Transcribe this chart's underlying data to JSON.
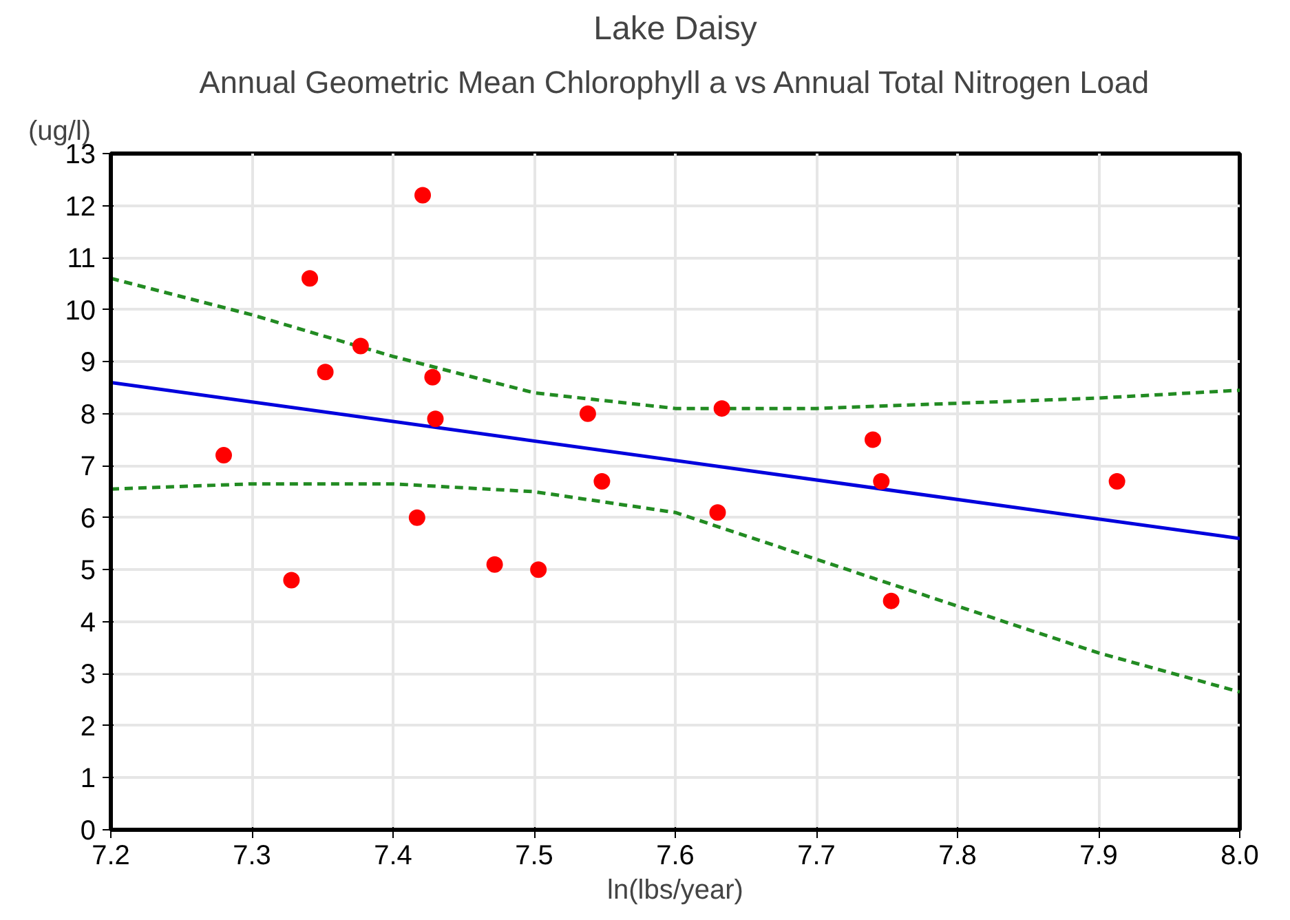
{
  "chart_data": {
    "type": "scatter",
    "title": "Lake Daisy",
    "subtitle": "Annual Geometric Mean Chlorophyll a vs Annual Total Nitrogen Load",
    "xlabel": "ln(lbs/year)",
    "ylabel": "(ug/l)",
    "xlim": [
      7.2,
      8.0
    ],
    "ylim": [
      0,
      13
    ],
    "xticks": [
      7.2,
      7.3,
      7.4,
      7.5,
      7.6,
      7.7,
      7.8,
      7.9,
      {
        "value": 8.0,
        "label": "8.0"
      }
    ],
    "yticks": [
      0,
      1,
      2,
      3,
      4,
      5,
      6,
      7,
      8,
      9,
      10,
      11,
      12,
      13
    ],
    "grid": true,
    "series": [
      {
        "marker": "circle",
        "color": "#ff0000",
        "x": [
          7.28,
          7.328,
          7.341,
          7.352,
          7.377,
          7.417,
          7.421,
          7.428,
          7.43,
          7.472,
          7.503,
          7.538,
          7.548,
          7.633,
          7.63,
          7.74,
          7.746,
          7.753,
          7.913
        ],
        "values": [
          7.2,
          4.8,
          10.6,
          8.8,
          9.3,
          6.0,
          12.2,
          8.7,
          7.9,
          5.1,
          5.0,
          8.0,
          6.7,
          8.1,
          6.1,
          7.5,
          6.7,
          4.4,
          6.7
        ]
      },
      {
        "type": "line",
        "color": "#0000dd",
        "line_style": "solid",
        "x": [
          7.2,
          8.0
        ],
        "values": [
          8.6,
          5.6
        ]
      },
      {
        "type": "line",
        "color": "#228b22",
        "line_style": "dashed",
        "x": [
          7.2,
          7.3,
          7.4,
          7.5,
          7.6,
          7.65,
          7.7,
          7.8,
          7.9,
          8.0
        ],
        "values": [
          10.6,
          9.9,
          9.1,
          8.4,
          8.1,
          8.1,
          8.1,
          8.2,
          8.3,
          8.45
        ]
      },
      {
        "type": "line",
        "color": "#228b22",
        "line_style": "dashed",
        "x": [
          7.2,
          7.3,
          7.4,
          7.5,
          7.6,
          7.7,
          7.8,
          7.9,
          8.0
        ],
        "values": [
          6.55,
          6.65,
          6.65,
          6.5,
          6.1,
          5.2,
          4.3,
          3.4,
          2.65
        ]
      }
    ]
  }
}
